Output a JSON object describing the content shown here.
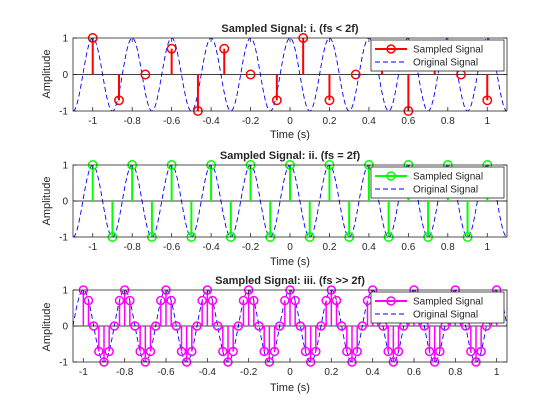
{
  "chart_data": [
    {
      "type": "line",
      "title": "Sampled Signal: i. (fs < 2f)",
      "xlabel": "Time (s)",
      "ylabel": "Amplitude",
      "xlim": [
        -1.1,
        1.1
      ],
      "ylim": [
        -1,
        1
      ],
      "xticks": [
        "-1",
        "-0.8",
        "-0.6",
        "-0.4",
        "-0.2",
        "0",
        "0.2",
        "0.4",
        "0.6",
        "0.8",
        "1"
      ],
      "yticks": [
        "-1",
        "0",
        "1"
      ],
      "grid": false,
      "legend_position": "top-right",
      "original": {
        "name": "Original Signal",
        "color": "#0000ff",
        "style": "dashed",
        "frequency_hz": 5,
        "phase": "cos"
      },
      "samples": {
        "name": "Sampled Signal",
        "color": "#ff0000",
        "style": "stem",
        "x": [
          -1.0,
          -0.8667,
          -0.7333,
          -0.6,
          -0.4667,
          -0.3333,
          -0.2,
          -0.0667,
          0.0667,
          0.2,
          0.3333,
          0.4667,
          0.6,
          0.7333,
          0.8667,
          1.0
        ],
        "y": [
          1.0,
          -0.707,
          0.0,
          0.707,
          -1.0,
          0.707,
          0.0,
          -0.707,
          1.0,
          -0.707,
          0.0,
          0.707,
          -1.0,
          0.707,
          0.0,
          -0.707
        ]
      }
    },
    {
      "type": "line",
      "title": "Sampled Signal: ii. (fs = 2f)",
      "xlabel": "Time (s)",
      "ylabel": "Amplitude",
      "xlim": [
        -1.1,
        1.1
      ],
      "ylim": [
        -1,
        1
      ],
      "xticks": [
        "-1",
        "-0.8",
        "-0.6",
        "-0.4",
        "-0.2",
        "0",
        "0.2",
        "0.4",
        "0.6",
        "0.8",
        "1"
      ],
      "yticks": [
        "-1",
        "0",
        "1"
      ],
      "grid": false,
      "legend_position": "top-right",
      "original": {
        "name": "Original Signal",
        "color": "#0000ff",
        "style": "dashed",
        "frequency_hz": 5,
        "phase": "cos"
      },
      "samples": {
        "name": "Sampled Signal",
        "color": "#00ff00",
        "style": "stem",
        "x": [
          -1.0,
          -0.9,
          -0.8,
          -0.7,
          -0.6,
          -0.5,
          -0.4,
          -0.3,
          -0.2,
          -0.1,
          0.0,
          0.1,
          0.2,
          0.3,
          0.4,
          0.5,
          0.6,
          0.7,
          0.8,
          0.9,
          1.0
        ],
        "y": [
          1,
          -1,
          1,
          -1,
          1,
          -1,
          1,
          -1,
          1,
          -1,
          1,
          -1,
          1,
          -1,
          1,
          -1,
          1,
          -1,
          1,
          -1,
          1
        ]
      }
    },
    {
      "type": "line",
      "title": "Sampled Signal: iii. (fs >> 2f)",
      "xlabel": "Time (s)",
      "ylabel": "Amplitude",
      "xlim": [
        -1.05,
        1.05
      ],
      "ylim": [
        -1,
        1
      ],
      "xticks": [
        "-1",
        "-0.8",
        "-0.6",
        "-0.4",
        "-0.2",
        "0",
        "0.2",
        "0.4",
        "0.6",
        "0.8",
        "1"
      ],
      "yticks": [
        "-1",
        "0",
        "1"
      ],
      "grid": false,
      "legend_position": "top-right",
      "original": {
        "name": "Original Signal",
        "color": "#0000ff",
        "style": "dashed",
        "frequency_hz": 5,
        "phase": "cos"
      },
      "samples": {
        "name": "Sampled Signal",
        "color": "#ff00ff",
        "style": "stem",
        "x": [
          -1.0,
          -0.975,
          -0.95,
          -0.925,
          -0.9,
          -0.875,
          -0.85,
          -0.825,
          -0.8,
          -0.775,
          -0.75,
          -0.725,
          -0.7,
          -0.675,
          -0.65,
          -0.625,
          -0.6,
          -0.575,
          -0.55,
          -0.525,
          -0.5,
          -0.475,
          -0.45,
          -0.425,
          -0.4,
          -0.375,
          -0.35,
          -0.325,
          -0.3,
          -0.275,
          -0.25,
          -0.225,
          -0.2,
          -0.175,
          -0.15,
          -0.125,
          -0.1,
          -0.075,
          -0.05,
          -0.025,
          0.0,
          0.025,
          0.05,
          0.075,
          0.1,
          0.125,
          0.15,
          0.175,
          0.2,
          0.225,
          0.25,
          0.275,
          0.3,
          0.325,
          0.35,
          0.375,
          0.4,
          0.425,
          0.45,
          0.475,
          0.5,
          0.525,
          0.55,
          0.575,
          0.6,
          0.625,
          0.65,
          0.675,
          0.7,
          0.725,
          0.75,
          0.775,
          0.8,
          0.825,
          0.85,
          0.875,
          0.9,
          0.925,
          0.95,
          0.975,
          1.0
        ],
        "y": [
          1.0,
          0.707,
          0.0,
          -0.707,
          -1.0,
          -0.707,
          0.0,
          0.707,
          1.0,
          0.707,
          0.0,
          -0.707,
          -1.0,
          -0.707,
          0.0,
          0.707,
          1.0,
          0.707,
          0.0,
          -0.707,
          -1.0,
          -0.707,
          0.0,
          0.707,
          1.0,
          0.707,
          0.0,
          -0.707,
          -1.0,
          -0.707,
          0.0,
          0.707,
          1.0,
          0.707,
          0.0,
          -0.707,
          -1.0,
          -0.707,
          0.0,
          0.707,
          1.0,
          0.707,
          0.0,
          -0.707,
          -1.0,
          -0.707,
          0.0,
          0.707,
          1.0,
          0.707,
          0.0,
          -0.707,
          -1.0,
          -0.707,
          0.0,
          0.707,
          1.0,
          0.707,
          0.0,
          -0.707,
          -1.0,
          -0.707,
          0.0,
          0.707,
          1.0,
          0.707,
          0.0,
          -0.707,
          -1.0,
          -0.707,
          0.0,
          0.707,
          1.0,
          0.707,
          0.0,
          -0.707,
          -1.0,
          -0.707,
          0.0,
          0.707,
          1.0
        ]
      }
    }
  ]
}
